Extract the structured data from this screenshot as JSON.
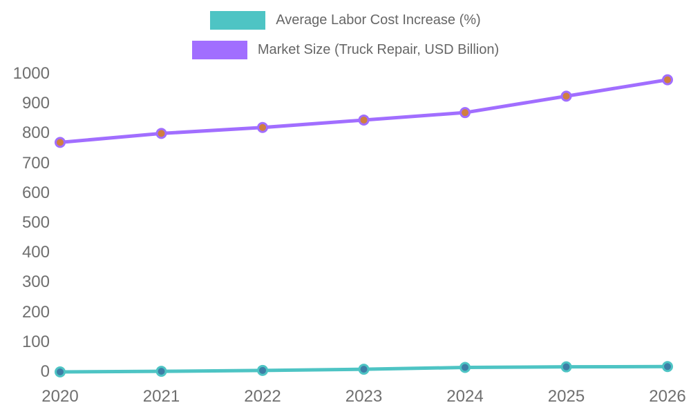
{
  "chart_data": {
    "type": "line",
    "title": "",
    "xlabel": "",
    "ylabel": "",
    "categories": [
      "2020",
      "2021",
      "2022",
      "2023",
      "2024",
      "2025",
      "2026"
    ],
    "series": [
      {
        "name": "Average Labor Cost Increase (%)",
        "color": "#4ec4c4",
        "marker_fill": "#3d7ea6",
        "values": [
          0,
          2,
          5,
          9,
          15,
          17,
          18
        ]
      },
      {
        "name": "Market Size (Truck Repair, USD Billion)",
        "color": "#a16eff",
        "marker_fill": "#d07f3f",
        "values": [
          770,
          800,
          820,
          845,
          870,
          925,
          980
        ]
      }
    ],
    "ylim": [
      0,
      1000
    ],
    "y_ticks": [
      "0",
      "100",
      "200",
      "300",
      "400",
      "500",
      "600",
      "700",
      "800",
      "900",
      "1000"
    ],
    "grid": false,
    "axis_lines": false,
    "legend_position": "top-center",
    "background_color": "#ffffff",
    "tick_label_color": "#6f6f6f",
    "legend_text_color": "#666666"
  }
}
